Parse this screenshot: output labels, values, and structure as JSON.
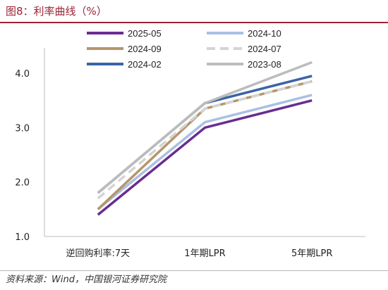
{
  "figure": {
    "title": "图8：利率曲线（%）",
    "source": "资料来源：Wind，中国银河证券研究院",
    "colors": {
      "title": "#9b2335",
      "axis": "#bdbdbd"
    }
  },
  "chart_data": {
    "type": "line",
    "title": "",
    "xlabel": "",
    "ylabel": "",
    "categories": [
      "逆回购利率:7天",
      "1年期LPR",
      "5年期LPR"
    ],
    "ylim": [
      1.0,
      4.0
    ],
    "yticks": [
      "1.0",
      "2.0",
      "3.0",
      "4.0"
    ],
    "grid": false,
    "legend_position": "top",
    "series": [
      {
        "name": "2025-05",
        "values": [
          1.4,
          3.0,
          3.5
        ],
        "color": "#6a2c91",
        "dash": "solid"
      },
      {
        "name": "2024-10",
        "values": [
          1.5,
          3.1,
          3.6
        ],
        "color": "#a9c0e4",
        "dash": "solid"
      },
      {
        "name": "2024-09",
        "values": [
          1.5,
          3.35,
          3.85
        ],
        "color": "#b5966a",
        "dash": "solid"
      },
      {
        "name": "2024-07",
        "values": [
          1.7,
          3.35,
          3.85
        ],
        "color": "#d4d4d4",
        "dash": "dashed"
      },
      {
        "name": "2024-02",
        "values": [
          1.8,
          3.45,
          3.95
        ],
        "color": "#3b64a8",
        "dash": "solid"
      },
      {
        "name": "2023-08",
        "values": [
          1.8,
          3.45,
          4.2
        ],
        "color": "#bcbcbc",
        "dash": "solid"
      }
    ]
  }
}
